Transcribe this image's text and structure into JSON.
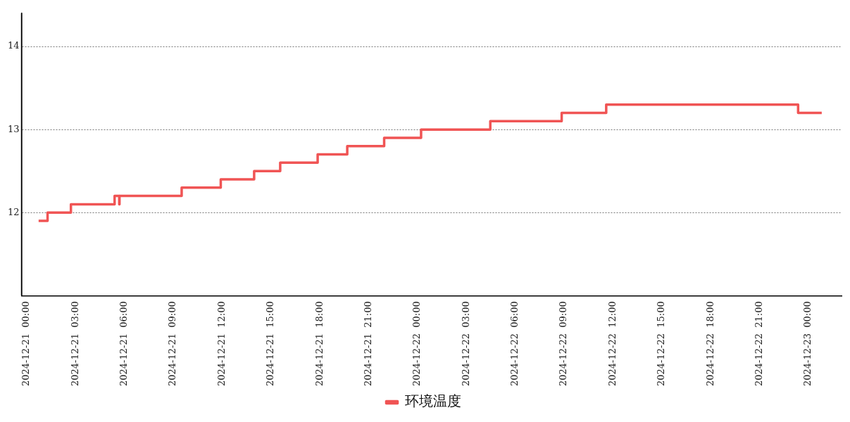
{
  "chart_data": {
    "type": "step",
    "legend": "bottom",
    "grid": "y",
    "marker": "none",
    "line_style": "solid",
    "xlim": [
      "2024-12-20T23:41",
      "2024-12-23T02:02"
    ],
    "xticks": [
      {
        "value": "2024-12-21T00:00",
        "label": "2024-12-21  00:00"
      },
      {
        "value": "2024-12-21T03:00",
        "label": "2024-12-21  03:00"
      },
      {
        "value": "2024-12-21T06:00",
        "label": "2024-12-21  06:00"
      },
      {
        "value": "2024-12-21T09:00",
        "label": "2024-12-21  09:00"
      },
      {
        "value": "2024-12-21T12:00",
        "label": "2024-12-21  12:00"
      },
      {
        "value": "2024-12-21T15:00",
        "label": "2024-12-21  15:00"
      },
      {
        "value": "2024-12-21T18:00",
        "label": "2024-12-21  18:00"
      },
      {
        "value": "2024-12-21T21:00",
        "label": "2024-12-21  21:00"
      },
      {
        "value": "2024-12-22T00:00",
        "label": "2024-12-22  00:00"
      },
      {
        "value": "2024-12-22T03:00",
        "label": "2024-12-22  03:00"
      },
      {
        "value": "2024-12-22T06:00",
        "label": "2024-12-22  06:00"
      },
      {
        "value": "2024-12-22T09:00",
        "label": "2024-12-22  09:00"
      },
      {
        "value": "2024-12-22T12:00",
        "label": "2024-12-22  12:00"
      },
      {
        "value": "2024-12-22T15:00",
        "label": "2024-12-22  15:00"
      },
      {
        "value": "2024-12-22T18:00",
        "label": "2024-12-22  18:00"
      },
      {
        "value": "2024-12-22T21:00",
        "label": "2024-12-22  21:00"
      },
      {
        "value": "2024-12-23T00:00",
        "label": "2024-12-23  00:00"
      }
    ],
    "ylim": [
      11,
      14.4
    ],
    "yticks": [
      12,
      13,
      14
    ],
    "series": [
      {
        "name": "环境温度",
        "color": "#f05454",
        "x": [
          "2024-12-21T00:44",
          "2024-12-21T01:17",
          "2024-12-21T02:43",
          "2024-12-21T05:24",
          "2024-12-21T05:41",
          "2024-12-21T05:42",
          "2024-12-21T09:31",
          "2024-12-21T11:55",
          "2024-12-21T13:58",
          "2024-12-21T15:34",
          "2024-12-21T17:52",
          "2024-12-21T19:41",
          "2024-12-21T21:57",
          "2024-12-22T00:13",
          "2024-12-22T04:28",
          "2024-12-22T08:51",
          "2024-12-22T11:35",
          "2024-12-22T23:22",
          "2024-12-23T00:49"
        ],
        "values": [
          11.9,
          12.0,
          12.1,
          12.2,
          12.1,
          12.2,
          12.3,
          12.4,
          12.5,
          12.6,
          12.7,
          12.8,
          12.9,
          13.0,
          13.1,
          13.2,
          13.3,
          13.2,
          13.2
        ]
      }
    ]
  }
}
